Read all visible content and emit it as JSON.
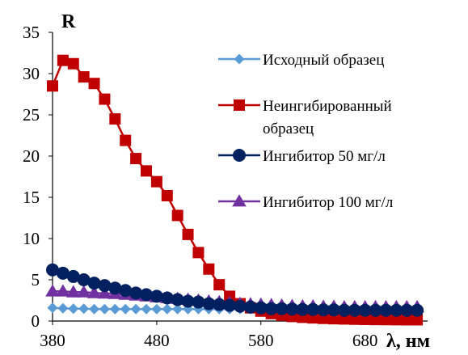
{
  "chart_data": {
    "type": "line",
    "title": "",
    "xlabel": "λ, нм",
    "ylabel": "R",
    "xlim": [
      380,
      740
    ],
    "ylim": [
      0,
      35
    ],
    "xticks": [
      380,
      480,
      580,
      680
    ],
    "yticks": [
      0,
      5,
      10,
      15,
      20,
      25,
      30,
      35
    ],
    "grid": false,
    "legend": "right",
    "x": [
      380,
      390,
      400,
      410,
      420,
      430,
      440,
      450,
      460,
      470,
      480,
      490,
      500,
      510,
      520,
      530,
      540,
      550,
      560,
      570,
      580,
      590,
      600,
      610,
      620,
      630,
      640,
      650,
      660,
      670,
      680,
      690,
      700,
      710,
      720,
      730
    ],
    "series": [
      {
        "name": "Исходный образец",
        "color": "#5b9bd5",
        "marker": "diamond",
        "values": [
          1.6,
          1.55,
          1.5,
          1.5,
          1.45,
          1.45,
          1.45,
          1.45,
          1.45,
          1.45,
          1.45,
          1.45,
          1.45,
          1.45,
          1.45,
          1.45,
          1.45,
          1.45,
          1.45,
          1.45,
          1.45,
          1.45,
          1.45,
          1.45,
          1.45,
          1.45,
          1.45,
          1.45,
          1.45,
          1.45,
          1.45,
          1.45,
          1.45,
          1.45,
          1.45,
          1.45
        ]
      },
      {
        "name": "Неингибированный образец",
        "legend_lines": [
          "Неингибированный",
          "образец"
        ],
        "color": "#c00000",
        "marker": "square",
        "values": [
          28.5,
          31.6,
          31.2,
          29.6,
          28.8,
          26.9,
          24.5,
          21.9,
          19.7,
          18.2,
          16.9,
          15.2,
          12.8,
          10.5,
          8.3,
          6.3,
          4.4,
          3.0,
          2.1,
          1.6,
          1.2,
          0.9,
          0.7,
          0.55,
          0.45,
          0.38,
          0.32,
          0.28,
          0.25,
          0.22,
          0.2,
          0.18,
          0.17,
          0.16,
          0.15,
          0.15
        ]
      },
      {
        "name": "Ингибитор 50 мг/л",
        "color": "#002060",
        "marker": "circle",
        "values": [
          6.2,
          5.8,
          5.4,
          5.0,
          4.6,
          4.3,
          4.0,
          3.7,
          3.4,
          3.2,
          3.0,
          2.8,
          2.6,
          2.4,
          2.3,
          2.1,
          2.0,
          1.9,
          1.8,
          1.7,
          1.6,
          1.5,
          1.5,
          1.45,
          1.4,
          1.4,
          1.35,
          1.35,
          1.3,
          1.3,
          1.3,
          1.3,
          1.3,
          1.3,
          1.3,
          1.3
        ]
      },
      {
        "name": "Ингибитор 100 мг/л",
        "color": "#7030a0",
        "marker": "triangle",
        "values": [
          3.6,
          3.6,
          3.5,
          3.5,
          3.4,
          3.35,
          3.3,
          3.2,
          3.1,
          3.0,
          2.9,
          2.8,
          2.7,
          2.6,
          2.5,
          2.4,
          2.3,
          2.2,
          2.1,
          2.05,
          2.0,
          1.95,
          1.9,
          1.85,
          1.8,
          1.8,
          1.75,
          1.75,
          1.7,
          1.7,
          1.7,
          1.7,
          1.7,
          1.7,
          1.7,
          1.7
        ]
      }
    ]
  }
}
